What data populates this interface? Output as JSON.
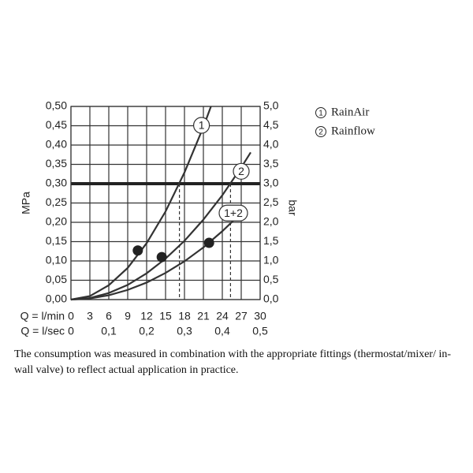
{
  "chart_data": {
    "type": "line",
    "x_label": "Q = l/min",
    "x2_label": "Q = l/sec",
    "y_label": "MPa",
    "y2_label": "bar",
    "xlim": [
      0,
      30
    ],
    "xticks": [
      0,
      3,
      6,
      9,
      12,
      15,
      18,
      21,
      24,
      27,
      30
    ],
    "x2lim": [
      0,
      0.5
    ],
    "x2ticks": [
      0,
      {
        "value": 0.1,
        "label": "0,1"
      },
      {
        "value": 0.2,
        "label": "0,2"
      },
      {
        "value": 0.3,
        "label": "0,3"
      },
      {
        "value": 0.4,
        "label": "0,4"
      },
      {
        "value": 0.5,
        "label": "0,5"
      }
    ],
    "ylim": [
      0,
      0.5
    ],
    "yticks": [
      {
        "value": 0,
        "label": "0,00"
      },
      {
        "value": 0.05,
        "label": "0,05"
      },
      {
        "value": 0.1,
        "label": "0,10"
      },
      {
        "value": 0.15,
        "label": "0,15"
      },
      {
        "value": 0.2,
        "label": "0,20"
      },
      {
        "value": 0.25,
        "label": "0,25"
      },
      {
        "value": 0.3,
        "label": "0,30"
      },
      {
        "value": 0.35,
        "label": "0,35"
      },
      {
        "value": 0.4,
        "label": "0,40"
      },
      {
        "value": 0.45,
        "label": "0,45"
      },
      {
        "value": 0.5,
        "label": "0,50"
      }
    ],
    "y2lim": [
      0,
      5
    ],
    "y2ticks": [
      {
        "value": 0,
        "label": "0,0"
      },
      {
        "value": 0.5,
        "label": "0,5"
      },
      {
        "value": 1,
        "label": "1,0"
      },
      {
        "value": 1.5,
        "label": "1,5"
      },
      {
        "value": 2,
        "label": "2,0"
      },
      {
        "value": 2.5,
        "label": "2,5"
      },
      {
        "value": 3,
        "label": "3,0"
      },
      {
        "value": 3.5,
        "label": "3,5"
      },
      {
        "value": 4,
        "label": "4,0"
      },
      {
        "value": 4.5,
        "label": "4,5"
      },
      {
        "value": 5,
        "label": "5,0"
      }
    ],
    "grid": true,
    "color": "#333333",
    "series": [
      {
        "label": "1",
        "name": "RainAir",
        "x": [
          0,
          3,
          6,
          9,
          12,
          15,
          18,
          21,
          22.2
        ],
        "values": [
          0,
          0.009,
          0.037,
          0.082,
          0.146,
          0.228,
          0.329,
          0.447,
          0.5
        ]
      },
      {
        "label": "2",
        "name": "Rainflow",
        "x": [
          0,
          3,
          6,
          9,
          12,
          15,
          18,
          21,
          24,
          27,
          28.5
        ],
        "values": [
          0,
          0.004,
          0.017,
          0.038,
          0.068,
          0.106,
          0.152,
          0.207,
          0.27,
          0.342,
          0.381
        ]
      },
      {
        "label": "1+2",
        "x": [
          0,
          3,
          6,
          9,
          12,
          15,
          18,
          21,
          24,
          27
        ],
        "values": [
          0,
          0.003,
          0.011,
          0.025,
          0.044,
          0.069,
          0.099,
          0.135,
          0.177,
          0.224
        ]
      }
    ],
    "markers": {
      "x": [
        10.6,
        14.4,
        21.9
      ],
      "values": [
        0.127,
        0.11,
        0.147
      ]
    },
    "hline": 0.3,
    "vlines": [
      {
        "x": 17.2,
        "y": 0.3
      },
      {
        "x": 25.3,
        "y": 0.3
      }
    ],
    "caption": "The consumption was measured in combination with the appropriate fittings (thermostat/mixer/ in-wall valve) to reflect actual application in practice."
  }
}
